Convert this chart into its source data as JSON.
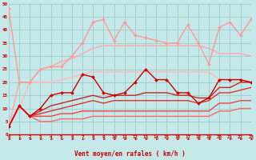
{
  "xlabel": "Vent moyen/en rafales ( km/h )",
  "x": [
    0,
    1,
    2,
    3,
    4,
    5,
    6,
    7,
    8,
    9,
    10,
    11,
    12,
    13,
    14,
    15,
    16,
    17,
    18,
    19,
    20,
    21,
    22,
    23
  ],
  "ylim": [
    0,
    50
  ],
  "xlim": [
    0,
    23
  ],
  "yticks": [
    0,
    5,
    10,
    15,
    20,
    25,
    30,
    35,
    40,
    45,
    50
  ],
  "bg_color": "#c5e8e8",
  "grid_color": "#a0cccc",
  "lines": [
    {
      "y": [
        48,
        20,
        20,
        25,
        26,
        26,
        30,
        35,
        43,
        44,
        36,
        43,
        38,
        37,
        36,
        35,
        35,
        42,
        35,
        27,
        41,
        43,
        38,
        44
      ],
      "color": "#ff9999",
      "lw": 1.0,
      "marker": "D",
      "ms": 2.0,
      "zorder": 3,
      "alpha": 1.0
    },
    {
      "y": [
        3,
        20,
        20,
        25,
        26,
        28,
        29,
        31,
        33,
        34,
        34,
        34,
        34,
        34,
        34,
        34,
        34,
        34,
        34,
        33,
        31,
        31,
        31,
        30
      ],
      "color": "#ffaaaa",
      "lw": 1.3,
      "marker": null,
      "ms": 0,
      "zorder": 2,
      "alpha": 0.85
    },
    {
      "y": [
        3,
        10,
        20,
        20,
        20,
        21,
        22,
        23,
        24,
        24,
        24,
        24,
        24,
        24,
        24,
        24,
        24,
        24,
        24,
        24,
        21,
        21,
        21,
        20
      ],
      "color": "#ffbbbb",
      "lw": 1.3,
      "marker": null,
      "ms": 0,
      "zorder": 2,
      "alpha": 0.85
    },
    {
      "y": [
        3,
        11,
        7,
        10,
        15,
        16,
        16,
        23,
        22,
        16,
        15,
        16,
        20,
        25,
        21,
        21,
        16,
        16,
        12,
        14,
        21,
        21,
        21,
        20
      ],
      "color": "#cc0000",
      "lw": 1.0,
      "marker": "D",
      "ms": 2.0,
      "zorder": 4,
      "alpha": 1.0
    },
    {
      "y": [
        3,
        11,
        7,
        9,
        11,
        12,
        13,
        14,
        15,
        14,
        15,
        15,
        15,
        16,
        16,
        16,
        15,
        15,
        14,
        14,
        18,
        18,
        20,
        20
      ],
      "color": "#cc2222",
      "lw": 1.0,
      "marker": null,
      "ms": 0,
      "zorder": 3,
      "alpha": 1.0
    },
    {
      "y": [
        3,
        11,
        7,
        8,
        9,
        10,
        11,
        12,
        13,
        12,
        13,
        13,
        13,
        13,
        13,
        13,
        13,
        13,
        12,
        13,
        16,
        16,
        17,
        18
      ],
      "color": "#dd3333",
      "lw": 1.0,
      "marker": null,
      "ms": 0,
      "zorder": 3,
      "alpha": 1.0
    },
    {
      "y": [
        3,
        11,
        7,
        7,
        7,
        8,
        8,
        9,
        9,
        9,
        9,
        9,
        9,
        9,
        9,
        9,
        9,
        9,
        9,
        9,
        12,
        12,
        13,
        13
      ],
      "color": "#ee4444",
      "lw": 1.0,
      "marker": null,
      "ms": 0,
      "zorder": 3,
      "alpha": 1.0
    },
    {
      "y": [
        3,
        11,
        7,
        5,
        5,
        6,
        6,
        6,
        7,
        7,
        7,
        7,
        7,
        7,
        7,
        7,
        7,
        7,
        7,
        7,
        9,
        9,
        10,
        10
      ],
      "color": "#ff6666",
      "lw": 1.0,
      "marker": null,
      "ms": 0,
      "zorder": 3,
      "alpha": 1.0
    }
  ],
  "arrow_color": "#cc0000",
  "xlabel_color": "#cc0000",
  "tick_color": "#cc0000",
  "axis_line_color": "#cc0000"
}
